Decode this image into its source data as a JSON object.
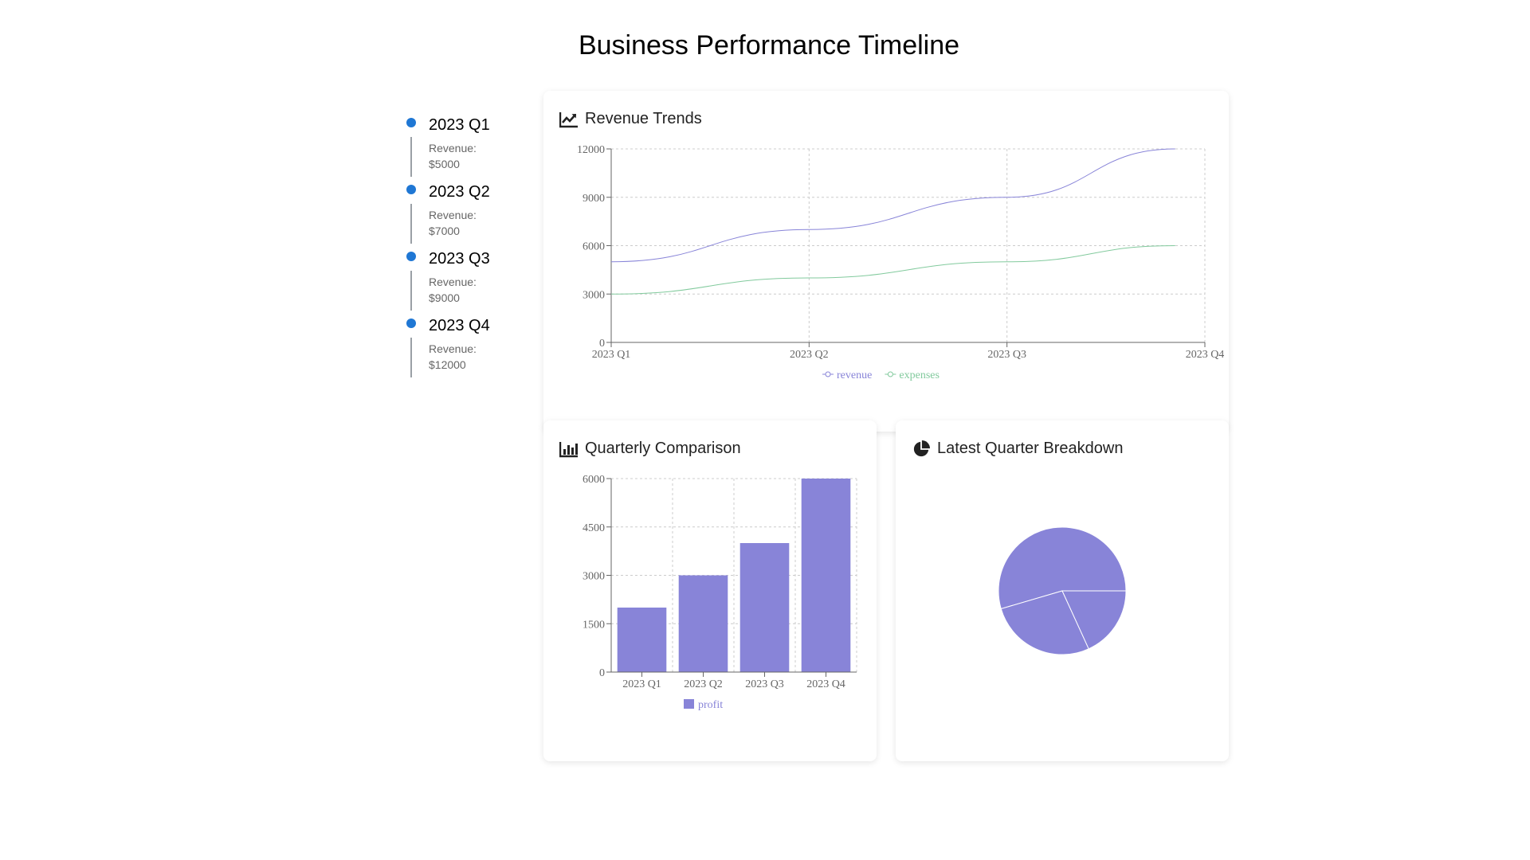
{
  "page": {
    "title": "Business Performance Timeline"
  },
  "timeline": {
    "items": [
      {
        "title": "2023 Q1",
        "label": "Revenue:",
        "value": "$5000"
      },
      {
        "title": "2023 Q2",
        "label": "Revenue:",
        "value": "$7000"
      },
      {
        "title": "2023 Q3",
        "label": "Revenue:",
        "value": "$9000"
      },
      {
        "title": "2023 Q4",
        "label": "Revenue:",
        "value": "$12000"
      }
    ]
  },
  "cards": {
    "revenue": {
      "title": "Revenue Trends",
      "icon": "line-chart-icon"
    },
    "quarterly": {
      "title": "Quarterly Comparison",
      "icon": "bar-chart-icon"
    },
    "breakdown": {
      "title": "Latest Quarter Breakdown",
      "icon": "pie-chart-icon"
    }
  },
  "colors": {
    "accent": "#8884d8",
    "secondary": "#82ca9d",
    "timeline_dot": "#1f77d4"
  },
  "chart_data": [
    {
      "type": "line",
      "title": "Revenue Trends",
      "categories": [
        "2023 Q1",
        "2023 Q2",
        "2023 Q3",
        "2023 Q4"
      ],
      "series": [
        {
          "name": "revenue",
          "values": [
            5000,
            7000,
            9000,
            12000
          ],
          "color": "#8884d8"
        },
        {
          "name": "expenses",
          "values": [
            3000,
            4000,
            5000,
            6000
          ],
          "color": "#82ca9d"
        }
      ],
      "ylim": [
        0,
        12000
      ],
      "yticks": [
        "0",
        "3000",
        "6000",
        "9000",
        "12000"
      ],
      "grid": true,
      "legend": "bottom"
    },
    {
      "type": "bar",
      "title": "Quarterly Comparison",
      "categories": [
        "2023 Q1",
        "2023 Q2",
        "2023 Q3",
        "2023 Q4"
      ],
      "series": [
        {
          "name": "profit",
          "values": [
            2000,
            3000,
            4000,
            6000
          ],
          "color": "#8884d8"
        }
      ],
      "ylim": [
        0,
        6000
      ],
      "yticks": [
        "0",
        "1500",
        "3000",
        "4500",
        "6000"
      ],
      "grid": true,
      "legend": "bottom"
    },
    {
      "type": "pie",
      "title": "Latest Quarter Breakdown",
      "slices": [
        {
          "value": 12000,
          "color": "#8884d8"
        },
        {
          "value": 6000,
          "color": "#8884d8"
        },
        {
          "value": 4000,
          "color": "#8884d8"
        }
      ]
    }
  ]
}
